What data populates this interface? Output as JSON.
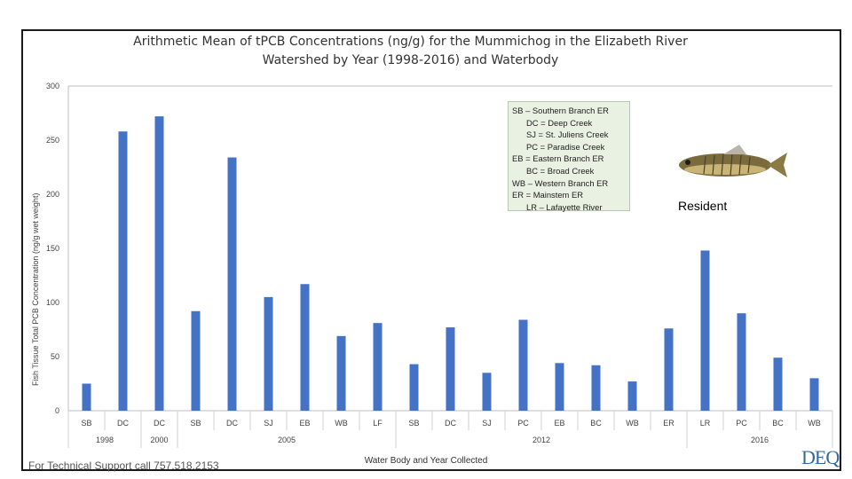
{
  "chart_data": {
    "type": "bar",
    "title_line1": "Arithmetic Mean of tPCB Concentrations (ng/g) for the Mummichog in the Elizabeth River",
    "title_line2": "Watershed by Year (1998-2016) and Waterbody",
    "xlabel": "Water Body and Year Collected",
    "ylabel": "Fish Tissue Total PCB Concentration  (ng/g wet weight)",
    "ylim": [
      0,
      300
    ],
    "yticks": [
      "0",
      "50",
      "100",
      "150",
      "200",
      "250",
      "300"
    ],
    "grid": false,
    "bar_color": "#4472c4",
    "categories": [
      "SB",
      "DC",
      "DC",
      "SB",
      "DC",
      "SJ",
      "EB",
      "WB",
      "LF",
      "SB",
      "DC",
      "SJ",
      "PC",
      "EB",
      "BC",
      "WB",
      "ER",
      "LR",
      "PC",
      "BC",
      "WB"
    ],
    "values": [
      25,
      258,
      272,
      92,
      234,
      105,
      117,
      69,
      81,
      43,
      77,
      35,
      84,
      44,
      42,
      27,
      76,
      148,
      90,
      49,
      30
    ],
    "year_groups": [
      {
        "label": "1998",
        "count": 2
      },
      {
        "label": "2000",
        "count": 1
      },
      {
        "label": "2005",
        "count": 6
      },
      {
        "label": "2012",
        "count": 8
      },
      {
        "label": "2016",
        "count": 4
      }
    ]
  },
  "legend": {
    "items": [
      "SB – Southern Branch ER",
      "DC = Deep Creek",
      "SJ = St. Juliens Creek",
      "PC = Paradise Creek",
      "EB = Eastern Branch ER",
      "BC = Broad Creek",
      "WB – Western Branch ER",
      "ER = Mainstem ER",
      "LR – Lafayette River"
    ]
  },
  "resident_label": "Resident",
  "footer_note": "For Technical Support call 757.518.2153",
  "logo_text": "DEQ"
}
